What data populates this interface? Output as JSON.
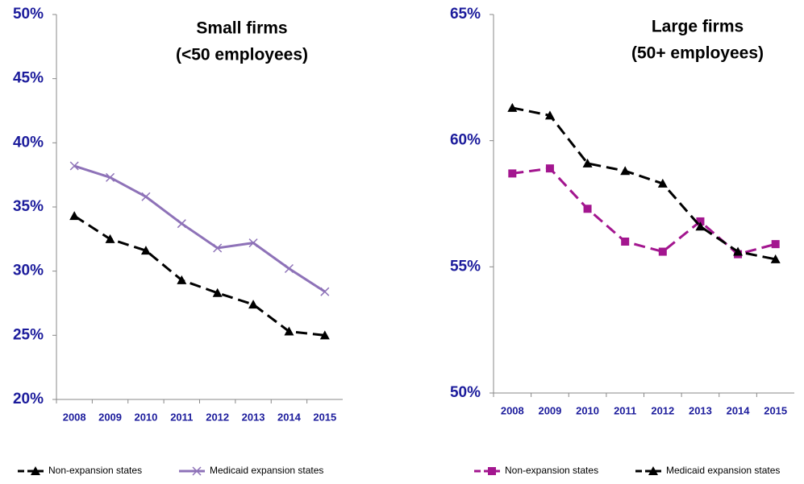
{
  "chart_data": [
    {
      "type": "line",
      "title": "Small firms",
      "subtitle": "(<50 employees)",
      "categories": [
        "2008",
        "2009",
        "2010",
        "2011",
        "2012",
        "2013",
        "2014",
        "2015"
      ],
      "ylim": [
        20,
        50
      ],
      "yticks": [
        {
          "value": 20,
          "label": "20%"
        },
        {
          "value": 25,
          "label": "25%"
        },
        {
          "value": 30,
          "label": "30%"
        },
        {
          "value": 35,
          "label": "35%"
        },
        {
          "value": 40,
          "label": "40%"
        },
        {
          "value": 45,
          "label": "45%"
        },
        {
          "value": 50,
          "label": "50%"
        }
      ],
      "series": [
        {
          "name": "Non-expansion states",
          "color": "#000000",
          "line_style": "dashed",
          "marker": "triangle",
          "values": [
            34.3,
            32.5,
            31.6,
            29.3,
            28.3,
            27.4,
            25.3,
            25.0
          ]
        },
        {
          "name": "Medicaid expansion states",
          "color": "#8e72b8",
          "line_style": "solid",
          "marker": "x",
          "values": [
            38.2,
            37.3,
            35.8,
            33.7,
            31.8,
            32.2,
            30.2,
            28.4
          ]
        }
      ]
    },
    {
      "type": "line",
      "title": "Large firms",
      "subtitle": "(50+ employees)",
      "categories": [
        "2008",
        "2009",
        "2010",
        "2011",
        "2012",
        "2013",
        "2014",
        "2015"
      ],
      "ylim": [
        50,
        65
      ],
      "yticks": [
        {
          "value": 50,
          "label": "50%"
        },
        {
          "value": 55,
          "label": "55%"
        },
        {
          "value": 60,
          "label": "60%"
        },
        {
          "value": 65,
          "label": "65%"
        }
      ],
      "series": [
        {
          "name": "Non-expansion states",
          "color": "#a3168f",
          "line_style": "dashed",
          "marker": "square",
          "values": [
            58.7,
            58.9,
            57.3,
            56.0,
            55.6,
            56.8,
            55.5,
            55.9
          ]
        },
        {
          "name": "Medicaid expansion states",
          "color": "#000000",
          "line_style": "dashed",
          "marker": "triangle",
          "values": [
            61.3,
            61.0,
            59.1,
            58.8,
            58.3,
            56.6,
            55.6,
            55.3
          ]
        }
      ]
    }
  ]
}
